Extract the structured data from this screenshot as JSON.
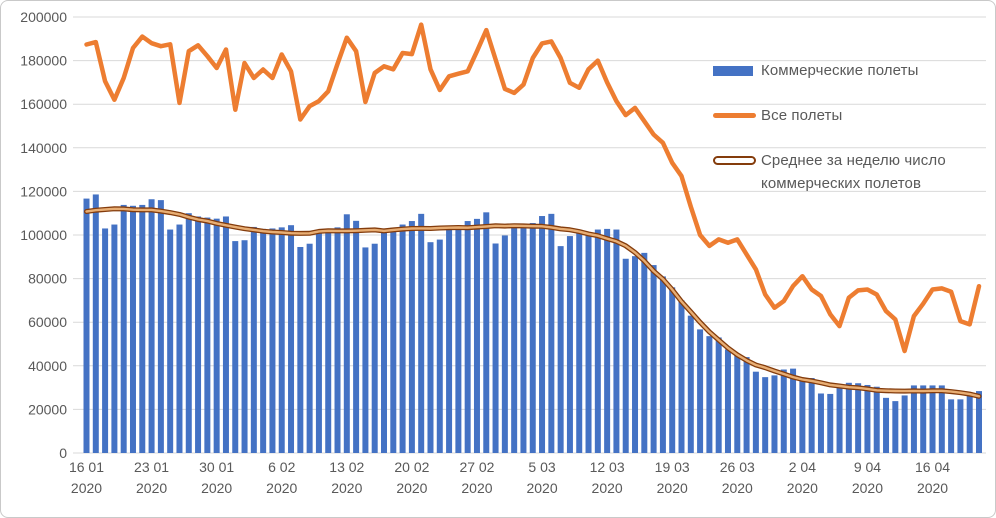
{
  "figure": {
    "background": "#ffffff",
    "border_color": "#c9c9c9"
  },
  "axes": {
    "y_min": 0,
    "y_max": 200000,
    "y_step": 20000,
    "y_tick_labels": [
      "0",
      "20000",
      "40000",
      "60000",
      "80000",
      "100000",
      "120000",
      "140000",
      "160000",
      "180000",
      "200000"
    ],
    "x_tick_labels": [
      "16 01",
      "23 01",
      "30 01",
      "6 02",
      "13 02",
      "20 02",
      "27 02",
      "5 03",
      "12 03",
      "19 03",
      "26 03",
      "2 04",
      "9 04",
      "16 04"
    ],
    "x_tick_year": "2020",
    "tick_text_color": "#595959",
    "gridline_color": "#d9d9d9"
  },
  "legend": {
    "text_color": "#595959"
  },
  "chart_data": {
    "type": "combo",
    "x": {
      "frequency": "daily",
      "start_date": "16 01 2020",
      "end_date": "21 04 2020",
      "num_points": 97
    },
    "ylim": [
      0,
      200000
    ],
    "grid": "horizontal",
    "legend_position": "right-top-inside",
    "series": [
      {
        "name": "Коммерческие полеты",
        "type": "bar",
        "color": "#4472c4",
        "values": [
          116700,
          118600,
          103000,
          104800,
          113800,
          113400,
          113800,
          116400,
          116000,
          102500,
          104800,
          110000,
          108500,
          108000,
          107500,
          108500,
          97200,
          97600,
          103700,
          102800,
          103000,
          103500,
          104500,
          94500,
          96000,
          101500,
          102000,
          103500,
          109500,
          106500,
          94300,
          96000,
          102000,
          103300,
          104800,
          106400,
          109700,
          96700,
          97900,
          102500,
          102900,
          106400,
          107400,
          110400,
          96100,
          99800,
          104300,
          105200,
          105500,
          108700,
          109700,
          94900,
          99500,
          101000,
          100400,
          102500,
          102800,
          102500,
          89100,
          90300,
          91800,
          86200,
          81000,
          76000,
          70000,
          63000,
          56700,
          53600,
          53000,
          47500,
          45200,
          44000,
          37300,
          34800,
          35600,
          38300,
          38700,
          34600,
          34400,
          27300,
          27100,
          31000,
          32200,
          32000,
          31200,
          30400,
          25300,
          23800,
          26400,
          31000,
          31000,
          31000,
          31000,
          24600,
          24600,
          26400,
          28400
        ]
      },
      {
        "name": "Все полеты",
        "type": "line",
        "color": "#ed7d31",
        "stroke_width": 4.5,
        "values": [
          187400,
          188500,
          170500,
          162000,
          172000,
          185800,
          191000,
          188000,
          186600,
          187500,
          160600,
          184300,
          187000,
          182000,
          176600,
          185100,
          157500,
          178900,
          172000,
          175900,
          172000,
          182800,
          175100,
          153000,
          159100,
          161400,
          165900,
          178500,
          190500,
          184300,
          161000,
          174300,
          177400,
          176000,
          183500,
          183000,
          196500,
          176000,
          166500,
          172800,
          174000,
          175100,
          184300,
          194000,
          180500,
          167000,
          165200,
          169000,
          181200,
          187900,
          188800,
          181200,
          169800,
          167500,
          176000,
          180000,
          170000,
          161400,
          155000,
          158300,
          152200,
          146100,
          142300,
          133100,
          127000,
          113000,
          100000,
          95000,
          98000,
          96400,
          98000,
          91100,
          84200,
          72700,
          66600,
          69700,
          76600,
          81100,
          75000,
          72000,
          63600,
          58200,
          71200,
          74600,
          75000,
          72700,
          65100,
          61300,
          46800,
          62800,
          68500,
          75000,
          75500,
          74000,
          60500,
          59000,
          76500
        ]
      },
      {
        "name": "Среднее за неделю число коммерческих полетов",
        "type": "line-outlined",
        "outline_color": "#843c0c",
        "inner_color": "#e8ae74",
        "outline_width": 5,
        "inner_width": 2.4,
        "derived": "centered 7-day rolling mean of series 0 (Коммерческие полеты)",
        "window": 7
      }
    ]
  }
}
